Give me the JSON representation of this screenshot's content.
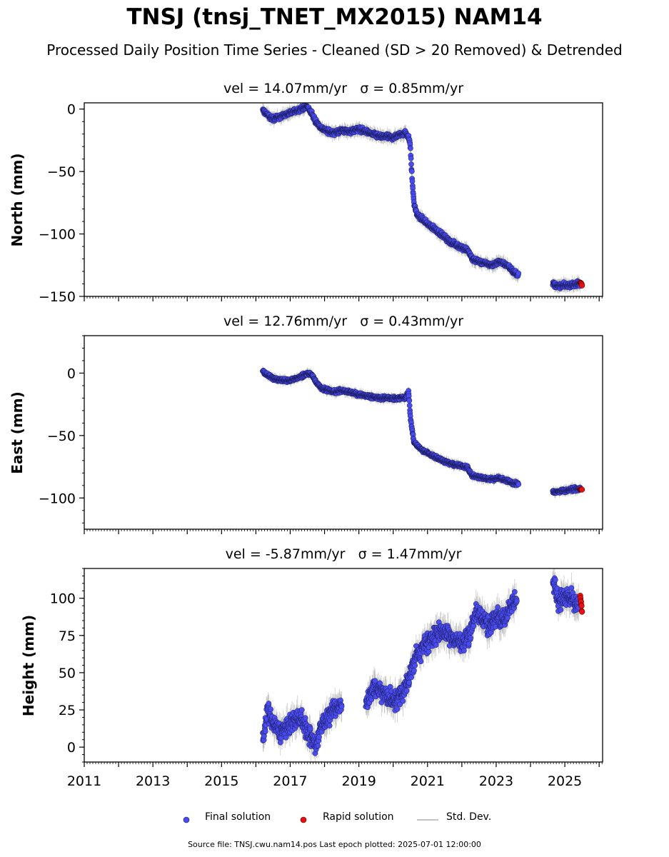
{
  "figure": {
    "title": "TNSJ (tnsj_TNET_MX2015) NAM14",
    "subtitle": "Processed Daily Position Time Series - Cleaned (SD > 20 Removed) & Detrended"
  },
  "panels": [
    {
      "id": "north",
      "ylabel": "North (mm)",
      "title_vel": "vel = 14.07mm/yr",
      "title_sigma": "σ = 0.85mm/yr"
    },
    {
      "id": "east",
      "ylabel": "East (mm)",
      "title_vel": "vel = 12.76mm/yr",
      "title_sigma": "σ = 0.43mm/yr"
    },
    {
      "id": "height",
      "ylabel": "Height (mm)",
      "title_vel": "vel = -5.87mm/yr",
      "title_sigma": "σ = 1.47mm/yr"
    }
  ],
  "legend": {
    "final": "Final solution",
    "rapid": "Rapid solution",
    "std": "Std. Dev."
  },
  "footer": "Source file: TNSJ.cwu.nam14.pos  Last epoch plotted: 2025-07-01 12:00:00",
  "colors": {
    "final": "#4a4cf0",
    "rapid": "#e81010",
    "std": "#b0b0b0"
  },
  "chart_data": [
    {
      "type": "scatter",
      "ylabel": "North (mm)",
      "xlim": [
        2011.0,
        2026.1
      ],
      "ylim": [
        -150,
        5
      ],
      "xticks": [
        2011,
        2013,
        2015,
        2017,
        2019,
        2021,
        2023,
        2025
      ],
      "yticks": [
        0,
        -50,
        -100,
        -150
      ],
      "ytick_labels": [
        "0",
        "−50",
        "−100",
        "−150"
      ],
      "series": [
        {
          "name": "Final solution",
          "x": [
            2016.2,
            2016.35,
            2016.5,
            2016.7,
            2016.9,
            2017.1,
            2017.3,
            2017.5,
            2017.65,
            2017.75,
            2017.9,
            2018.1,
            2018.3,
            2018.5,
            2018.7,
            2018.85,
            2019.0,
            2019.2,
            2019.4,
            2019.6,
            2019.8,
            2020.0,
            2020.2,
            2020.35,
            2020.45,
            2020.5,
            2020.55,
            2020.6,
            2020.7,
            2020.85,
            2021.0,
            2021.3,
            2021.6,
            2021.9,
            2022.15,
            2022.3,
            2022.6,
            2022.9,
            2023.1,
            2023.3,
            2023.5,
            2023.65,
            2024.65,
            2024.8,
            2025.0,
            2025.2,
            2025.35,
            2025.45
          ],
          "y": [
            -1,
            -5,
            -8,
            -6,
            -4,
            -2,
            0,
            2,
            -5,
            -10,
            -15,
            -18,
            -19,
            -17,
            -18,
            -17,
            -16,
            -18,
            -20,
            -22,
            -22,
            -23,
            -20,
            -19,
            -22,
            -30,
            -55,
            -75,
            -85,
            -88,
            -92,
            -98,
            -105,
            -110,
            -112,
            -120,
            -123,
            -125,
            -122,
            -125,
            -130,
            -133,
            -140,
            -142,
            -141,
            -141,
            -140,
            -140
          ]
        },
        {
          "name": "Rapid solution",
          "x": [
            2025.45,
            2025.5
          ],
          "y": [
            -139,
            -141
          ]
        }
      ]
    },
    {
      "type": "scatter",
      "ylabel": "East (mm)",
      "xlim": [
        2011.0,
        2026.1
      ],
      "ylim": [
        -125,
        30
      ],
      "xticks": [
        2011,
        2013,
        2015,
        2017,
        2019,
        2021,
        2023,
        2025
      ],
      "yticks": [
        0,
        -50,
        -100
      ],
      "ytick_labels": [
        "0",
        "−50",
        "−100"
      ],
      "series": [
        {
          "name": "Final solution",
          "x": [
            2016.2,
            2016.35,
            2016.5,
            2016.7,
            2016.9,
            2017.1,
            2017.3,
            2017.5,
            2017.65,
            2017.75,
            2017.9,
            2018.1,
            2018.3,
            2018.5,
            2018.7,
            2018.85,
            2019.0,
            2019.2,
            2019.4,
            2019.6,
            2019.8,
            2020.0,
            2020.2,
            2020.35,
            2020.45,
            2020.5,
            2020.55,
            2020.6,
            2020.7,
            2020.85,
            2021.0,
            2021.3,
            2021.6,
            2021.9,
            2022.15,
            2022.3,
            2022.6,
            2022.9,
            2023.1,
            2023.3,
            2023.5,
            2023.65,
            2024.65,
            2024.8,
            2025.0,
            2025.2,
            2025.35,
            2025.45
          ],
          "y": [
            2,
            -2,
            -4,
            -5,
            -6,
            -5,
            -3,
            0,
            -2,
            -7,
            -12,
            -14,
            -15,
            -14,
            -15,
            -16,
            -17,
            -18,
            -19,
            -20,
            -20,
            -20,
            -20,
            -20,
            -15,
            -35,
            -45,
            -55,
            -58,
            -62,
            -64,
            -68,
            -72,
            -74,
            -75,
            -82,
            -84,
            -85,
            -84,
            -86,
            -88,
            -89,
            -95,
            -95,
            -94,
            -93,
            -93,
            -93
          ]
        },
        {
          "name": "Rapid solution",
          "x": [
            2025.45,
            2025.5
          ],
          "y": [
            -93,
            -93
          ]
        }
      ]
    },
    {
      "type": "scatter",
      "ylabel": "Height (mm)",
      "xlim": [
        2011.0,
        2026.1
      ],
      "ylim": [
        -10,
        120
      ],
      "xticks": [
        2011,
        2013,
        2015,
        2017,
        2019,
        2021,
        2023,
        2025
      ],
      "yticks": [
        0,
        25,
        50,
        75,
        100
      ],
      "ytick_labels": [
        "0",
        "25",
        "50",
        "75",
        "100"
      ],
      "series": [
        {
          "name": "Final solution",
          "x": [
            2016.2,
            2016.35,
            2016.5,
            2016.7,
            2016.9,
            2017.1,
            2017.3,
            2017.5,
            2017.65,
            2017.75,
            2017.9,
            2018.1,
            2018.3,
            2018.5,
            2019.2,
            2019.4,
            2019.6,
            2019.8,
            2020.0,
            2020.2,
            2020.35,
            2020.5,
            2020.65,
            2020.8,
            2021.0,
            2021.2,
            2021.4,
            2021.6,
            2021.8,
            2022.0,
            2022.2,
            2022.4,
            2022.6,
            2022.8,
            2023.0,
            2023.2,
            2023.4,
            2023.6,
            2024.65,
            2024.8,
            2025.0,
            2025.2,
            2025.4
          ],
          "y": [
            5,
            25,
            15,
            10,
            12,
            18,
            20,
            10,
            5,
            0,
            15,
            20,
            25,
            30,
            30,
            40,
            38,
            35,
            30,
            35,
            40,
            50,
            60,
            65,
            70,
            75,
            78,
            76,
            72,
            70,
            75,
            90,
            88,
            80,
            90,
            85,
            95,
            100,
            110,
            100,
            100,
            100,
            95
          ]
        },
        {
          "name": "Rapid solution",
          "x": [
            2025.45,
            2025.47,
            2025.49,
            2025.5
          ],
          "y": [
            100,
            97,
            94,
            90
          ]
        }
      ]
    }
  ]
}
